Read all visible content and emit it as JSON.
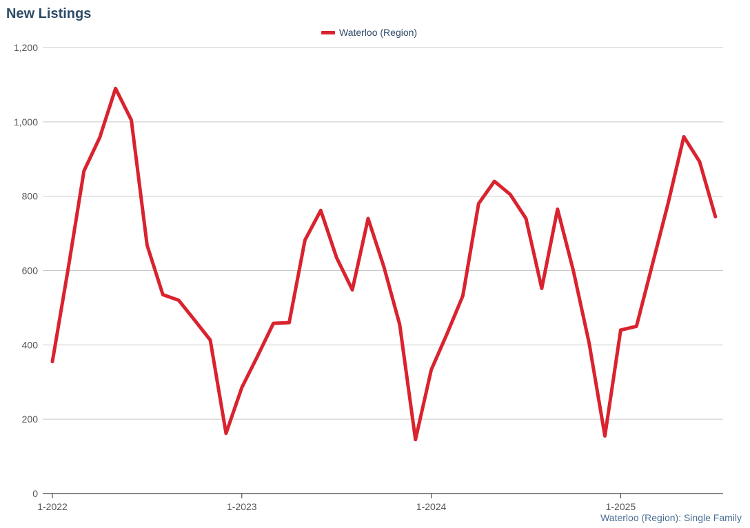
{
  "header": {
    "title": "New Listings"
  },
  "legend": {
    "items": [
      {
        "label": "Waterloo (Region)",
        "color": "#d9232e"
      }
    ]
  },
  "footer": {
    "caption": "Waterloo (Region): Single Family"
  },
  "colors": {
    "series": "#d9232e",
    "grid": "#c8c8c8",
    "axis": "#333333",
    "title": "#2c4a66"
  },
  "chart_data": {
    "type": "line",
    "title": "New Listings",
    "xlabel": "",
    "ylabel": "",
    "ylim": [
      0,
      1200
    ],
    "yticks": [
      0,
      200,
      400,
      600,
      800,
      1000,
      1200
    ],
    "ytick_labels": [
      "0",
      "200",
      "400",
      "600",
      "800",
      "1,000",
      "1,200"
    ],
    "xticks": [
      "1-2022",
      "1-2023",
      "1-2024",
      "1-2025"
    ],
    "grid": true,
    "legend_position": "top-center",
    "x": [
      "2022-01",
      "2022-02",
      "2022-03",
      "2022-04",
      "2022-05",
      "2022-06",
      "2022-07",
      "2022-08",
      "2022-09",
      "2022-10",
      "2022-11",
      "2022-12",
      "2023-01",
      "2023-02",
      "2023-03",
      "2023-04",
      "2023-05",
      "2023-06",
      "2023-07",
      "2023-08",
      "2023-09",
      "2023-10",
      "2023-11",
      "2023-12",
      "2024-01",
      "2024-02",
      "2024-03",
      "2024-04",
      "2024-05",
      "2024-06",
      "2024-07",
      "2024-08",
      "2024-09",
      "2024-10",
      "2024-11",
      "2024-12",
      "2025-01",
      "2025-02",
      "2025-03",
      "2025-04",
      "2025-05",
      "2025-06",
      "2025-07"
    ],
    "series": [
      {
        "name": "Waterloo (Region)",
        "values": [
          355,
          605,
          868,
          958,
          1090,
          1005,
          668,
          535,
          520,
          467,
          413,
          162,
          285,
          370,
          458,
          460,
          682,
          762,
          635,
          548,
          740,
          610,
          455,
          145,
          333,
          430,
          532,
          780,
          840,
          805,
          740,
          552,
          765,
          600,
          405,
          155,
          440,
          450,
          615,
          780,
          960,
          893,
          745
        ]
      }
    ]
  }
}
